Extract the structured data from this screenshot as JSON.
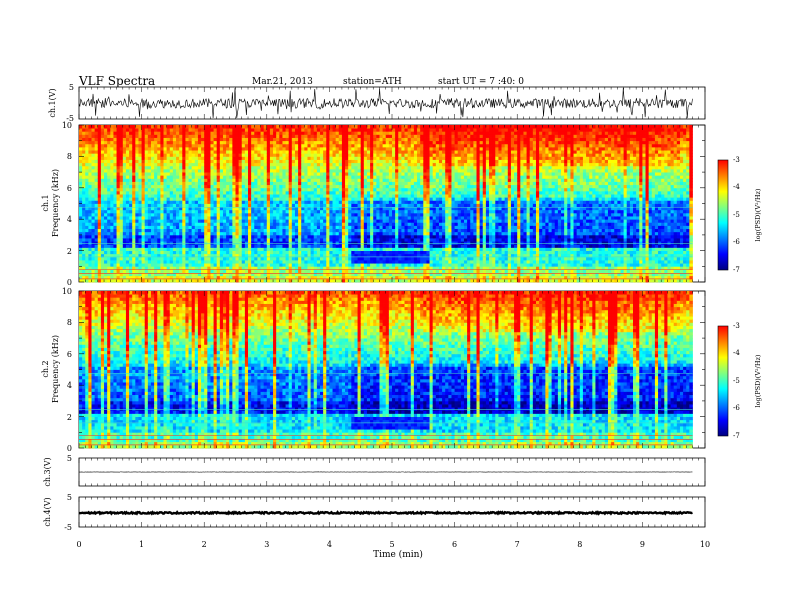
{
  "header": {
    "title": "VLF  Spectra",
    "date": "Mar.21, 2013",
    "station": "station=ATH",
    "start": "start  UT  =   7 :40: 0"
  },
  "chart_data": [
    {
      "type": "line",
      "panel": "ch1_waveform",
      "ylabel": "ch.1(V)",
      "yticks": [
        "5",
        "-5"
      ],
      "ylim": [
        -5,
        5
      ],
      "x_units": "min",
      "xlim": [
        0,
        10
      ],
      "data_extent_min": 9.8,
      "approx_level": -0.1,
      "approx_amplitude": 1.5,
      "color": "#000000"
    },
    {
      "type": "heatmap",
      "panel": "ch1_spectrogram",
      "ylabel": "ch.1\nFrequency  (kHz)",
      "ylabel_lines": [
        "ch.1",
        "Frequency  (kHz)"
      ],
      "yticks": [
        "0",
        "2",
        "4",
        "6",
        "8",
        "10"
      ],
      "ylim_khz": [
        0,
        10
      ],
      "xlim_min": [
        0,
        10
      ],
      "data_extent_min": 9.8,
      "colorbar": {
        "label": "log(PSD)(V²/Hz)",
        "ticks": [
          "-3",
          "-4",
          "-5",
          "-6",
          "-7"
        ],
        "range": [
          -7,
          -3
        ]
      },
      "quiet_region": {
        "t_start_min": 4.35,
        "t_end_min": 5.6,
        "f_low_khz": 1.2,
        "f_high_khz": 2.0
      }
    },
    {
      "type": "heatmap",
      "panel": "ch2_spectrogram",
      "ylabel": "ch.2\nFrequency  (kHz)",
      "ylabel_lines": [
        "ch.2",
        "Frequency  (kHz)"
      ],
      "yticks": [
        "0",
        "2",
        "4",
        "6",
        "8",
        "10"
      ],
      "ylim_khz": [
        0,
        10
      ],
      "xlim_min": [
        0,
        10
      ],
      "data_extent_min": 9.8,
      "colorbar": {
        "label": "log(PSD)(V²/Hz)",
        "ticks": [
          "-3",
          "-4",
          "-5",
          "-6",
          "-7"
        ],
        "range": [
          -7,
          -3
        ]
      },
      "quiet_region": {
        "t_start_min": 4.35,
        "t_end_min": 5.6,
        "f_low_khz": 1.2,
        "f_high_khz": 2.0
      }
    },
    {
      "type": "line",
      "panel": "ch3_waveform",
      "ylabel": "ch.3(V)",
      "yticks": [
        "5"
      ],
      "ylim": [
        -5,
        5
      ],
      "data_extent_min": 9.8,
      "approx_level": 0.0,
      "approx_amplitude": 0.05,
      "color": "#000000"
    },
    {
      "type": "line",
      "panel": "ch4_waveform",
      "ylabel": "ch.4(V)",
      "yticks": [
        "5",
        "-5"
      ],
      "ylim": [
        -5,
        5
      ],
      "data_extent_min": 9.8,
      "approx_level": -0.3,
      "approx_amplitude": 0.25,
      "color": "#000000"
    }
  ],
  "x_axis": {
    "label": "Time  (min)",
    "ticks": [
      "0",
      "1",
      "2",
      "3",
      "4",
      "5",
      "6",
      "7",
      "8",
      "9",
      "10"
    ]
  },
  "colormap": [
    "#000080",
    "#0000ff",
    "#0080ff",
    "#00ffff",
    "#80ff80",
    "#ffff00",
    "#ff8000",
    "#ff0000",
    "#ffffff"
  ]
}
